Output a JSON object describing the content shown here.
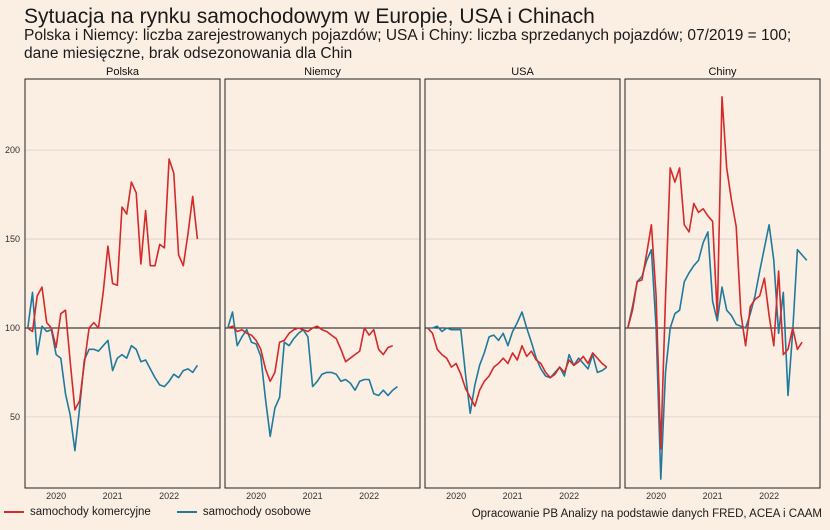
{
  "header": {
    "title": "Sytuacja na rynku samochodowym w Europie, USA i Chinach",
    "subtitle": "Polska i Niemcy: liczba zarejestrowanych pojazdów; USA i Chiny: liczba sprzedanych pojazdów; 07/2019 = 100; dane miesięczne, brak odsezonowania dla Chin"
  },
  "source": "Opracowanie PB Analizy na podstawie danych FRED, ACEA i CAAM",
  "colors": {
    "commercial": "#d42a2a",
    "passenger": "#1f7a9e",
    "background": "#fbeee3",
    "frame": "#222222"
  },
  "chart_data": {
    "type": "line",
    "y_ticks": [
      50,
      100,
      150,
      200
    ],
    "ylim": [
      10,
      240
    ],
    "x_ticks": [
      "2020",
      "2021",
      "2022"
    ],
    "x_tick_values": [
      2020.0,
      2021.0,
      2022.0
    ],
    "xlim": [
      2019.45,
      2022.9
    ],
    "reference_line": 100,
    "x_start": 2019.5,
    "x_step": 0.083333,
    "legend": {
      "position": "bottom-left",
      "entries": [
        "samochody komercyjne",
        "samochody osobowe"
      ]
    },
    "panels": [
      {
        "name": "Polska",
        "series": [
          {
            "name": "samochody komercyjne",
            "values": [
              100,
              98,
              118,
              123,
              103,
              100,
              89,
              108,
              110,
              81,
              54,
              59,
              80,
              100,
              103,
              100,
              120,
              146,
              125,
              124,
              168,
              164,
              182,
              176,
              136,
              166,
              135,
              135,
              147,
              145,
              195,
              187,
              141,
              135,
              153,
              174,
              150
            ]
          },
          {
            "name": "samochody osobowe",
            "values": [
              100,
              120,
              85,
              101,
              98,
              99,
              85,
              83,
              63,
              51,
              31,
              55,
              82,
              88,
              88,
              87,
              90,
              93,
              76,
              83,
              85,
              83,
              90,
              88,
              81,
              82,
              77,
              72,
              68,
              67,
              70,
              74,
              72,
              76,
              77,
              75,
              79
            ]
          }
        ]
      },
      {
        "name": "Niemcy",
        "series": [
          {
            "name": "samochody komercyjne",
            "values": [
              100,
              101,
              98,
              99,
              97,
              96,
              93,
              88,
              77,
              70,
              75,
              92,
              93,
              97,
              99,
              100,
              99,
              98,
              100,
              101,
              99,
              98,
              96,
              94,
              88,
              81,
              83,
              85,
              87,
              100,
              96,
              99,
              88,
              85,
              89,
              90
            ]
          },
          {
            "name": "samochody osobowe",
            "values": [
              100,
              109,
              90,
              95,
              99,
              92,
              91,
              84,
              60,
              39,
              55,
              61,
              92,
              90,
              94,
              97,
              99,
              95,
              67,
              70,
              74,
              75,
              75,
              74,
              70,
              71,
              69,
              65,
              70,
              71,
              71,
              63,
              62,
              65,
              62,
              65,
              67
            ]
          }
        ]
      },
      {
        "name": "USA",
        "series": [
          {
            "name": "samochody komercyjne",
            "values": [
              100,
              97,
              88,
              85,
              83,
              78,
              80,
              74,
              66,
              61,
              56,
              65,
              70,
              73,
              78,
              80,
              83,
              80,
              86,
              82,
              90,
              84,
              87,
              82,
              80,
              75,
              72,
              74,
              78,
              75,
              82,
              79,
              81,
              84,
              80,
              86,
              83,
              80,
              78
            ]
          },
          {
            "name": "samochody osobowe",
            "values": [
              100,
              100,
              101,
              98,
              100,
              99,
              99,
              99,
              74,
              52,
              68,
              79,
              86,
              95,
              96,
              93,
              97,
              90,
              98,
              103,
              109,
              100,
              92,
              83,
              77,
              73,
              72,
              75,
              78,
              73,
              85,
              79,
              83,
              80,
              77,
              85,
              75,
              76,
              78
            ]
          }
        ]
      },
      {
        "name": "Chiny",
        "series": [
          {
            "name": "samochody komercyjne",
            "values": [
              100,
              110,
              126,
              127,
              142,
              158,
              118,
              32,
              117,
              190,
              182,
              190,
              158,
              154,
              170,
              165,
              167,
              163,
              160,
              107,
              230,
              190,
              172,
              157,
              108,
              90,
              112,
              116,
              118,
              128,
              107,
              90,
              132,
              85,
              88,
              100,
              88,
              92
            ]
          },
          {
            "name": "samochody osobowe",
            "values": [
              100,
              112,
              126,
              129,
              138,
              144,
              100,
              15,
              75,
              100,
              108,
              110,
              126,
              131,
              135,
              138,
              148,
              154,
              115,
              104,
              123,
              110,
              107,
              102,
              101,
              100,
              108,
              118,
              132,
              145,
              158,
              138,
              97,
              120,
              62,
              98,
              144,
              141,
              138
            ]
          }
        ]
      }
    ]
  }
}
